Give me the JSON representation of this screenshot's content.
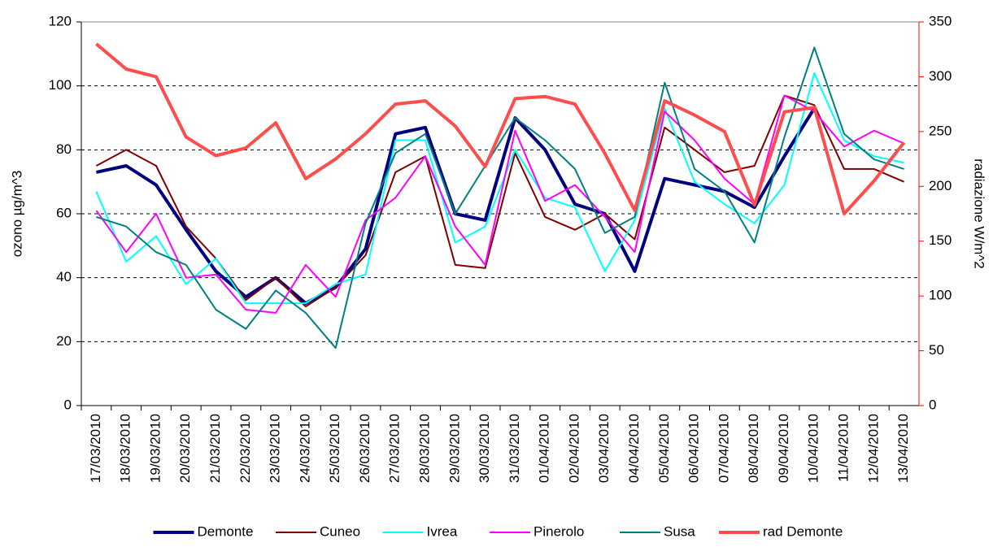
{
  "chart_data": {
    "type": "line",
    "y_label": "ozono µg/m^3",
    "y2_label": "radiazione W/m^2",
    "categories": [
      "17/03/2010",
      "18/03/2010",
      "19/03/2010",
      "20/03/2010",
      "21/03/2010",
      "22/03/2010",
      "23/03/2010",
      "24/03/2010",
      "25/03/2010",
      "26/03/2010",
      "27/03/2010",
      "28/03/2010",
      "29/03/2010",
      "30/03/2010",
      "31/03/2010",
      "01/04/2010",
      "02/04/2010",
      "03/04/2010",
      "04/04/2010",
      "05/04/2010",
      "06/04/2010",
      "07/04/2010",
      "08/04/2010",
      "09/04/2010",
      "10/04/2010",
      "11/04/2010",
      "12/04/2010",
      "13/04/2010"
    ],
    "series": [
      {
        "name": "Demonte",
        "color": "#000080",
        "width": 4,
        "values": [
          73,
          75,
          69,
          55,
          42,
          34,
          40,
          32,
          37,
          49,
          85,
          87,
          60,
          58,
          90,
          80,
          63,
          60,
          42,
          71,
          69,
          67,
          62,
          78,
          93,
          null,
          null,
          null
        ]
      },
      {
        "name": "Cuneo",
        "color": "#800000",
        "width": 2,
        "values": [
          75,
          80,
          75,
          56,
          46,
          33,
          40,
          31,
          37,
          47,
          73,
          78,
          44,
          43,
          79,
          59,
          55,
          60,
          52,
          87,
          80,
          73,
          75,
          97,
          94,
          74,
          74,
          70
        ]
      },
      {
        "name": "Ivrea",
        "color": "#00ffff",
        "width": 2,
        "values": [
          67,
          45,
          53,
          38,
          46,
          32,
          32,
          32,
          38,
          41,
          83,
          83,
          51,
          56,
          80,
          65,
          62,
          42,
          58,
          93,
          70,
          63,
          57,
          69,
          104,
          83,
          78,
          76
        ]
      },
      {
        "name": "Pinerolo",
        "color": "#ff00ff",
        "width": 2,
        "values": [
          61,
          48,
          60,
          40,
          41,
          30,
          29,
          44,
          34,
          58,
          65,
          78,
          56,
          44,
          86,
          64,
          69,
          59,
          48,
          92,
          83,
          71,
          63,
          97,
          92,
          81,
          86,
          82
        ]
      },
      {
        "name": "Susa",
        "color": "#008080",
        "width": 2,
        "values": [
          59,
          56,
          48,
          44,
          30,
          24,
          36,
          29,
          18,
          57,
          79,
          85,
          60,
          75,
          90,
          83,
          74,
          54,
          59,
          101,
          74,
          67,
          51,
          84,
          112,
          85,
          77,
          74
        ]
      },
      {
        "name": "rad Demonte",
        "color": "#ff4c4c",
        "width": 4,
        "axis": "y2",
        "values": [
          330,
          307,
          300,
          245,
          228,
          235,
          258,
          207,
          225,
          248,
          275,
          278,
          255,
          218,
          280,
          282,
          275,
          230,
          178,
          278,
          265,
          250,
          183,
          268,
          272,
          175,
          205,
          240
        ]
      }
    ],
    "ylim": [
      0,
      120
    ],
    "yticks": [
      0,
      20,
      40,
      60,
      80,
      100,
      120
    ],
    "y2lim": [
      0,
      350
    ],
    "y2ticks": [
      0,
      50,
      100,
      150,
      200,
      250,
      300,
      350
    ],
    "y2_color": "#ff0000",
    "grid": true
  }
}
